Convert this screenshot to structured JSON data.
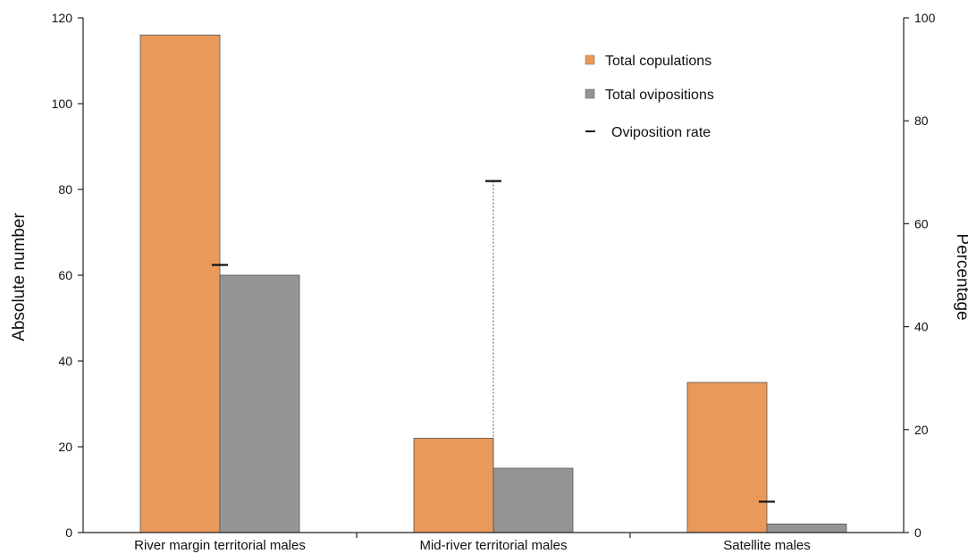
{
  "chart_data": {
    "type": "bar",
    "categories": [
      "River margin territorial males",
      "Mid-river territorial males",
      "Satellite males"
    ],
    "series": [
      {
        "name": "Total copulations",
        "axis": "left",
        "color": "#E9995A",
        "values": [
          116,
          22,
          35
        ]
      },
      {
        "name": "Total ovipositions",
        "axis": "left",
        "color": "#959595",
        "values": [
          60,
          15,
          2
        ]
      }
    ],
    "markers": {
      "name": "Oviposition rate",
      "axis": "right",
      "values": [
        52,
        68.3,
        6
      ]
    },
    "y_left": {
      "label": "Absolute number",
      "ylim": [
        0,
        120
      ],
      "ticks": [
        "0",
        "20",
        "40",
        "60",
        "80",
        "100",
        "120"
      ]
    },
    "y_right": {
      "label": "Percentage",
      "ylim": [
        0,
        100
      ],
      "ticks": [
        "0",
        "20",
        "40",
        "60",
        "80",
        "100"
      ]
    },
    "grid": false,
    "legend_position": "top-right"
  }
}
